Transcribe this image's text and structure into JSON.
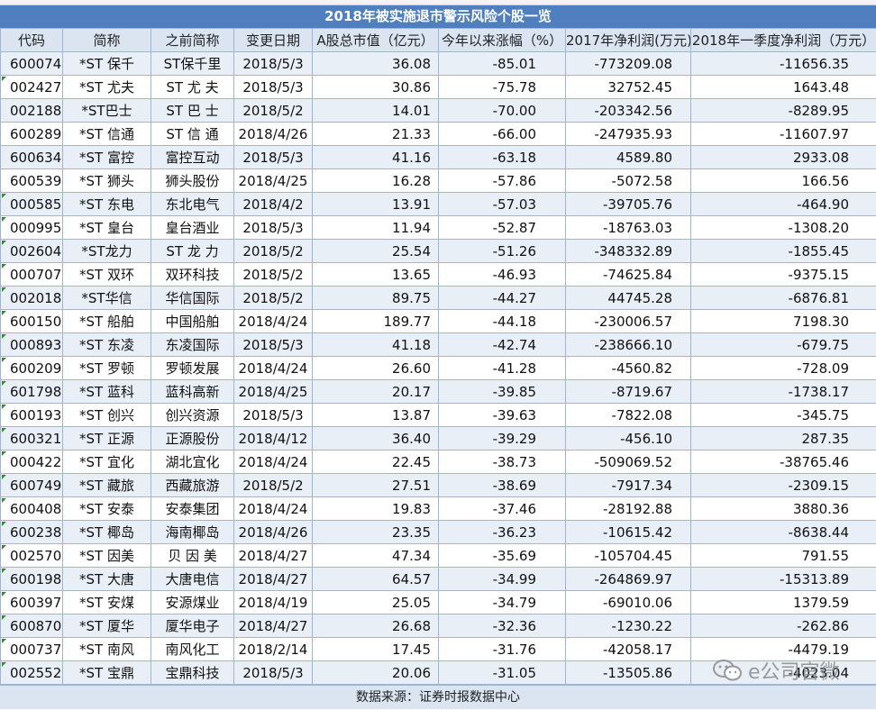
{
  "title": "2018年被实施退市警示风险个股一览",
  "headers": [
    "代码",
    "简称",
    "之前简称",
    "变更日期",
    "A股总市值（亿元）",
    "今年以来涨幅（%）",
    "2017年净利润(万元)",
    "2018年一季度净利润（万元）"
  ],
  "rows": [
    [
      "600074",
      "*ST 保千",
      "ST保千里",
      "2018/5/3",
      "36.08",
      "-85.01",
      "-773209.08",
      "-11656.35"
    ],
    [
      "002427",
      "*ST 尤夫",
      "ST 尤 夫",
      "2018/5/3",
      "30.86",
      "-75.78",
      "32752.45",
      "1643.48"
    ],
    [
      "002188",
      "*ST巴士",
      "ST 巴 士",
      "2018/5/2",
      "14.01",
      "-70.00",
      "-203342.56",
      "-8289.95"
    ],
    [
      "600289",
      "*ST 信通",
      "ST 信 通",
      "2018/4/26",
      "21.33",
      "-66.00",
      "-247935.93",
      "-11607.97"
    ],
    [
      "600634",
      "*ST 富控",
      "富控互动",
      "2018/5/3",
      "41.16",
      "-63.18",
      "4589.80",
      "2933.08"
    ],
    [
      "600539",
      "*ST 狮头",
      "狮头股份",
      "2018/4/25",
      "16.28",
      "-57.86",
      "-5072.58",
      "166.56"
    ],
    [
      "000585",
      "*ST 东电",
      "东北电气",
      "2018/4/2",
      "13.91",
      "-57.03",
      "-39705.76",
      "-464.90"
    ],
    [
      "000995",
      "*ST 皇台",
      "皇台酒业",
      "2018/5/3",
      "11.94",
      "-52.87",
      "-18763.03",
      "-1308.20"
    ],
    [
      "002604",
      "*ST龙力",
      "ST 龙 力",
      "2018/5/2",
      "25.54",
      "-51.26",
      "-348332.89",
      "-1855.45"
    ],
    [
      "000707",
      "*ST 双环",
      "双环科技",
      "2018/5/2",
      "13.65",
      "-46.93",
      "-74625.84",
      "-9375.15"
    ],
    [
      "002018",
      "*ST华信",
      "华信国际",
      "2018/5/2",
      "89.75",
      "-44.27",
      "44745.28",
      "-6876.81"
    ],
    [
      "600150",
      "*ST 船舶",
      "中国船舶",
      "2018/4/24",
      "189.77",
      "-44.18",
      "-230006.57",
      "7198.30"
    ],
    [
      "000893",
      "*ST 东凌",
      "东凌国际",
      "2018/5/3",
      "41.18",
      "-42.74",
      "-238666.10",
      "-679.75"
    ],
    [
      "600209",
      "*ST 罗顿",
      "罗顿发展",
      "2018/4/24",
      "26.60",
      "-41.28",
      "-4560.82",
      "-728.09"
    ],
    [
      "601798",
      "*ST 蓝科",
      "蓝科高新",
      "2018/4/25",
      "20.17",
      "-39.85",
      "-8719.67",
      "-1738.17"
    ],
    [
      "600193",
      "*ST 创兴",
      "创兴资源",
      "2018/5/3",
      "13.87",
      "-39.63",
      "-7822.08",
      "-345.75"
    ],
    [
      "600321",
      "*ST 正源",
      "正源股份",
      "2018/4/12",
      "36.40",
      "-39.29",
      "-456.10",
      "287.35"
    ],
    [
      "000422",
      "*ST 宜化",
      "湖北宜化",
      "2018/4/24",
      "22.45",
      "-38.73",
      "-509069.52",
      "-38765.46"
    ],
    [
      "600749",
      "*ST 藏旅",
      "西藏旅游",
      "2018/5/2",
      "27.51",
      "-38.69",
      "-7917.34",
      "-2309.15"
    ],
    [
      "600408",
      "*ST 安泰",
      "安泰集团",
      "2018/4/24",
      "19.83",
      "-37.46",
      "-28192.88",
      "3880.36"
    ],
    [
      "600238",
      "*ST 椰岛",
      "海南椰岛",
      "2018/4/26",
      "23.35",
      "-36.23",
      "-10615.42",
      "-8638.44"
    ],
    [
      "002570",
      "*ST 因美",
      "贝 因 美",
      "2018/4/27",
      "47.34",
      "-35.69",
      "-105704.45",
      "791.55"
    ],
    [
      "600198",
      "*ST 大唐",
      "大唐电信",
      "2018/4/27",
      "64.57",
      "-34.99",
      "-264869.97",
      "-15313.89"
    ],
    [
      "600397",
      "*ST 安煤",
      "安源煤业",
      "2018/4/19",
      "25.05",
      "-34.79",
      "-69010.06",
      "1379.59"
    ],
    [
      "600870",
      "*ST 厦华",
      "厦华电子",
      "2018/4/27",
      "26.68",
      "-32.36",
      "-1230.22",
      "-262.86"
    ],
    [
      "000737",
      "*ST 南风",
      "南风化工",
      "2018/2/14",
      "17.45",
      "-31.76",
      "-42058.17",
      "-4479.19"
    ],
    [
      "002552",
      "*ST 宝鼎",
      "宝鼎科技",
      "2018/5/3",
      "20.06",
      "-31.05",
      "-13505.86",
      "-4023.04"
    ]
  ],
  "footer": "数据来源：证券时报数据中心",
  "watermark": {
    "icon": "wechat-icon",
    "text": "e公司官微"
  },
  "colors": {
    "title_bg": "#4f7fbf",
    "header_bg": "#dbe5f2",
    "stripe_bg": "#e9eff7",
    "grid_line": "#9fb6d3"
  }
}
